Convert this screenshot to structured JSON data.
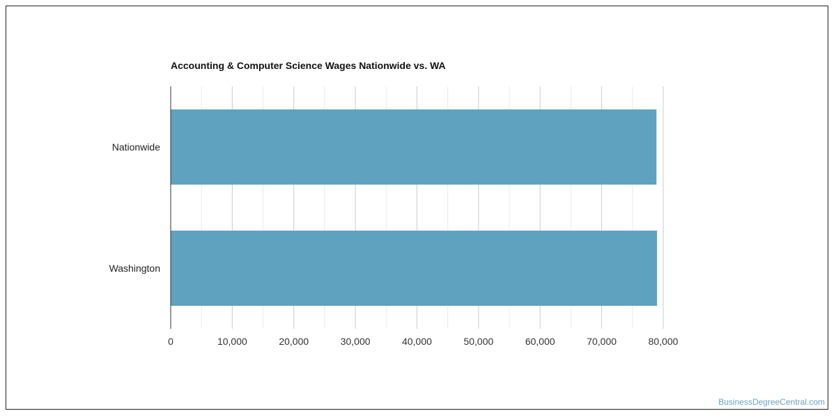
{
  "chart_data": {
    "type": "bar",
    "orientation": "horizontal",
    "title": "Accounting & Computer Science Wages Nationwide vs. WA",
    "categories": [
      "Nationwide",
      "Washington"
    ],
    "values": [
      78900,
      79000
    ],
    "xlim": [
      0,
      80000
    ],
    "xticks": [
      0,
      10000,
      20000,
      30000,
      40000,
      50000,
      60000,
      70000,
      80000
    ],
    "xtick_labels": [
      "0",
      "10,000",
      "20,000",
      "30,000",
      "40,000",
      "50,000",
      "60,000",
      "70,000",
      "80,000"
    ],
    "grid": true,
    "legend": "none",
    "bar_color": "#5ea2bf"
  },
  "footer": {
    "watermark": "BusinessDegreeCentral.com",
    "watermark_color": "#6aa3c2"
  }
}
